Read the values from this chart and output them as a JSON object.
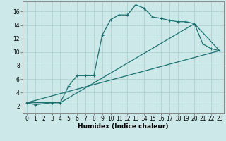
{
  "title": "",
  "xlabel": "Humidex (Indice chaleur)",
  "background_color": "#cce8e8",
  "grid_color": "#b0d0d0",
  "line_color": "#1a7070",
  "line1_x": [
    0,
    1,
    3,
    4,
    5,
    6,
    7,
    8,
    9,
    10,
    11,
    12,
    13,
    14,
    15,
    16,
    17,
    18,
    19,
    20,
    21,
    22,
    23
  ],
  "line1_y": [
    2.5,
    2.2,
    2.5,
    2.5,
    5.0,
    6.5,
    6.5,
    6.5,
    12.5,
    14.8,
    15.5,
    15.5,
    17.0,
    16.5,
    15.2,
    15.0,
    14.7,
    14.5,
    14.5,
    14.2,
    11.2,
    10.5,
    10.2
  ],
  "line2_x": [
    0,
    23
  ],
  "line2_y": [
    2.5,
    10.2
  ],
  "line3_x": [
    0,
    4,
    20,
    23
  ],
  "line3_y": [
    2.5,
    2.5,
    14.2,
    10.2
  ],
  "xlim": [
    -0.5,
    23.5
  ],
  "ylim": [
    1.0,
    17.5
  ],
  "yticks": [
    2,
    4,
    6,
    8,
    10,
    12,
    14,
    16
  ],
  "xticks": [
    0,
    1,
    2,
    3,
    4,
    5,
    6,
    7,
    8,
    9,
    10,
    11,
    12,
    13,
    14,
    15,
    16,
    17,
    18,
    19,
    20,
    21,
    22,
    23
  ],
  "tick_fontsize": 5.5,
  "xlabel_fontsize": 6.5
}
